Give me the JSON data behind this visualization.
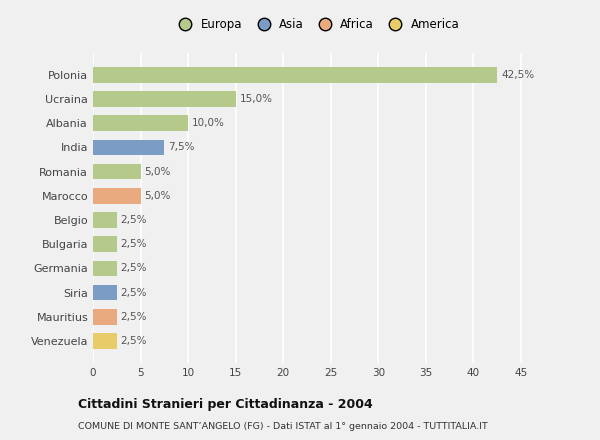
{
  "categories": [
    "Polonia",
    "Ucraina",
    "Albania",
    "India",
    "Romania",
    "Marocco",
    "Belgio",
    "Bulgaria",
    "Germania",
    "Siria",
    "Mauritius",
    "Venezuela"
  ],
  "values": [
    42.5,
    15.0,
    10.0,
    7.5,
    5.0,
    5.0,
    2.5,
    2.5,
    2.5,
    2.5,
    2.5,
    2.5
  ],
  "labels": [
    "42,5%",
    "15,0%",
    "10,0%",
    "7,5%",
    "5,0%",
    "5,0%",
    "2,5%",
    "2,5%",
    "2,5%",
    "2,5%",
    "2,5%",
    "2,5%"
  ],
  "colors": [
    "#b5c98a",
    "#b5c98a",
    "#b5c98a",
    "#7b9cc4",
    "#b5c98a",
    "#e8aa7e",
    "#b5c98a",
    "#b5c98a",
    "#b5c98a",
    "#7b9cc4",
    "#e8aa7e",
    "#e8cc6a"
  ],
  "legend_labels": [
    "Europa",
    "Asia",
    "Africa",
    "America"
  ],
  "legend_colors": [
    "#b5c98a",
    "#7b9cc4",
    "#e8aa7e",
    "#e8cc6a"
  ],
  "title_bold": "Cittadini Stranieri per Cittadinanza - 2004",
  "subtitle": "COMUNE DI MONTE SANT’ANGELO (FG) - Dati ISTAT al 1° gennaio 2004 - TUTTITALIA.IT",
  "xlim": [
    0,
    47
  ],
  "xticks": [
    0,
    5,
    10,
    15,
    20,
    25,
    30,
    35,
    40,
    45
  ],
  "background_color": "#f0f0f0",
  "grid_color": "#ffffff",
  "bar_height": 0.65
}
